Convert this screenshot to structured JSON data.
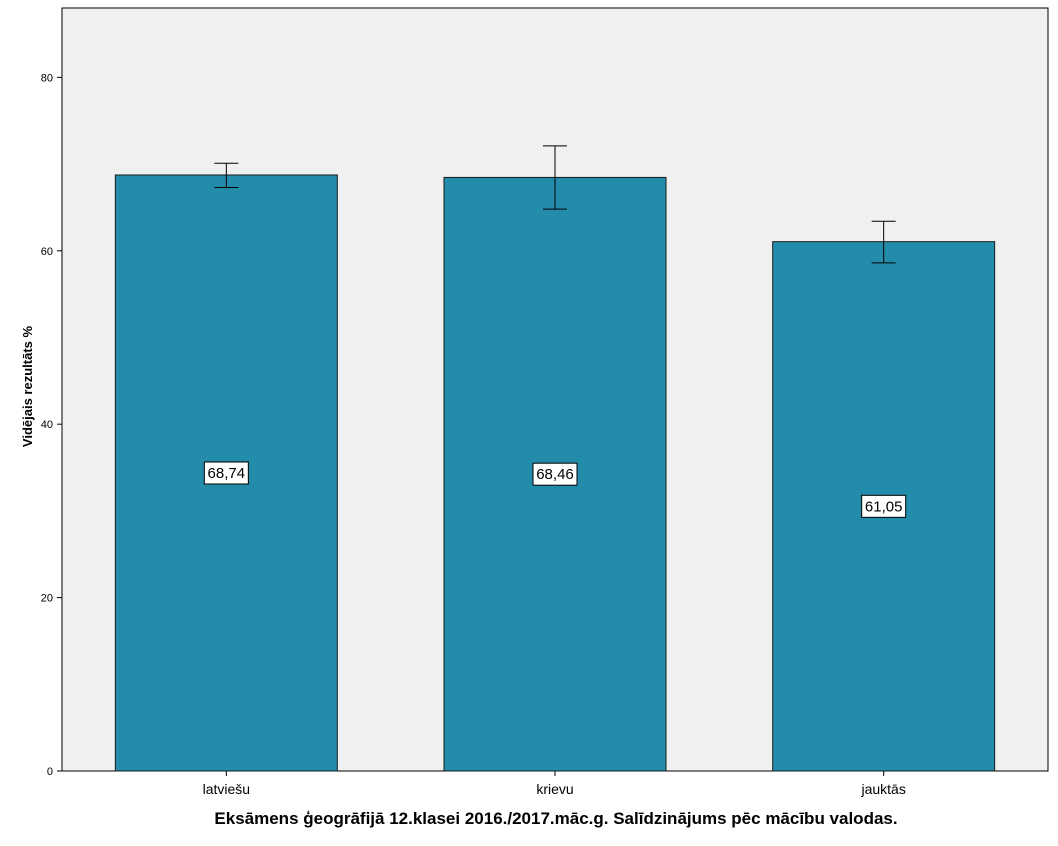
{
  "chart_data": {
    "type": "bar",
    "categories": [
      "latviešu",
      "krievu",
      "jauktās"
    ],
    "values": [
      68.74,
      68.46,
      61.05
    ],
    "value_labels": [
      "68,74",
      "68,46",
      "61,05"
    ],
    "error_bars": [
      {
        "low": 67.3,
        "high": 70.1
      },
      {
        "low": 64.8,
        "high": 72.1
      },
      {
        "low": 58.6,
        "high": 63.4
      }
    ],
    "xlabel": "Eksāmens ģeogrāfijā 12.klasei 2016./2017.māc.g. Salīdzinājums pēc mācību valodas.",
    "ylabel": "Vidējais rezultāts %",
    "ylim": [
      0,
      88
    ],
    "yticks": [
      0,
      20,
      40,
      60,
      80
    ],
    "ytick_labels": [
      "0",
      "20",
      "40",
      "60",
      "80"
    ],
    "grid": false,
    "colors": {
      "bar_fill": "#248cab",
      "bar_stroke": "#1a1a1a",
      "plot_background": "#f0f0f0",
      "error_bar": "#000000"
    }
  }
}
